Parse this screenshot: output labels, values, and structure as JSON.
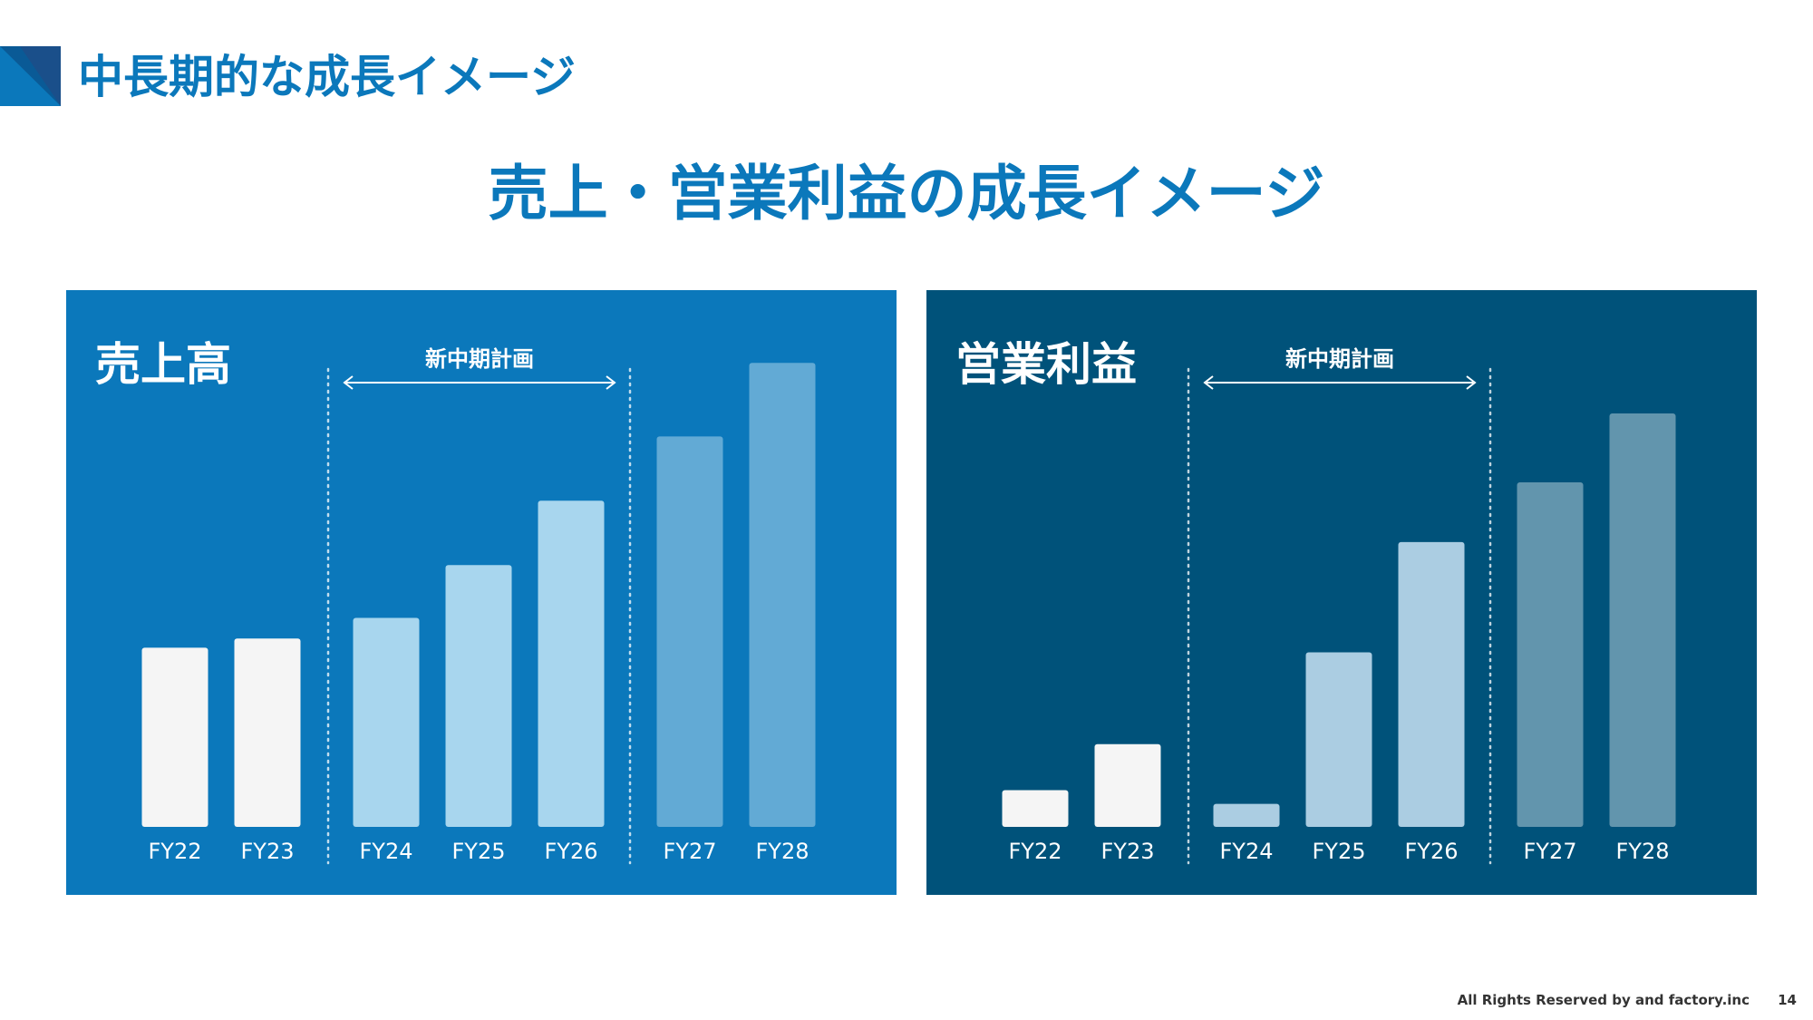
{
  "header": {
    "section_title": "中長期的な成長イメージ",
    "main_title": "売上・営業利益の成長イメージ"
  },
  "colors": {
    "accent": "#0b78bb",
    "panel_sales_bg": "#0b78bb",
    "panel_profit_bg": "#00527a",
    "bar_actual": "#f5f5f5",
    "sales_bar_plan": "#a8d6ee",
    "sales_bar_future": "#62aad5",
    "profit_bar_plan": "#abcde2",
    "profit_bar_future": "#6295ad"
  },
  "chart_data": [
    {
      "type": "bar",
      "title": "売上高",
      "categories": [
        "FY22",
        "FY23",
        "FY24",
        "FY25",
        "FY26",
        "FY27",
        "FY28"
      ],
      "values": [
        39,
        41,
        45.5,
        57,
        71,
        85,
        101
      ],
      "groups": [
        "actual",
        "actual",
        "plan",
        "plan",
        "plan",
        "future",
        "future"
      ],
      "ylim": [
        0,
        105
      ],
      "annotation": {
        "label": "新中期計画",
        "from": "FY24",
        "to": "FY26"
      },
      "grid": false,
      "legend": "none"
    },
    {
      "type": "bar",
      "title": "営業利益",
      "categories": [
        "FY22",
        "FY23",
        "FY24",
        "FY25",
        "FY26",
        "FY27",
        "FY28"
      ],
      "values": [
        8,
        18,
        5,
        38,
        62,
        75,
        90
      ],
      "groups": [
        "actual",
        "actual",
        "plan",
        "plan",
        "plan",
        "future",
        "future"
      ],
      "ylim": [
        0,
        105
      ],
      "annotation": {
        "label": "新中期計画",
        "from": "FY24",
        "to": "FY26"
      },
      "grid": false,
      "legend": "none"
    }
  ],
  "footer": {
    "copyright": "All Rights Reserved by and factory.inc",
    "page_number": "14"
  }
}
